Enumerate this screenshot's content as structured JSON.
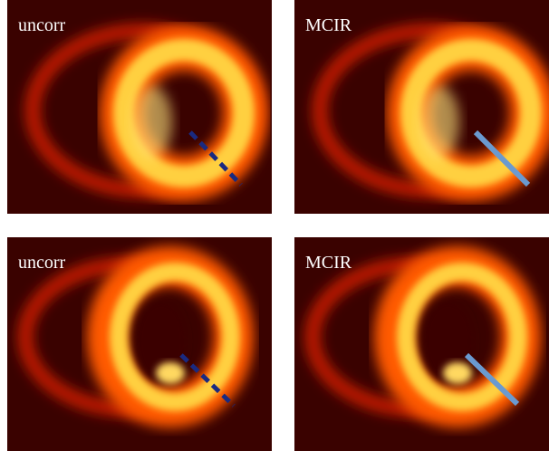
{
  "panels": [
    {
      "label": "uncorr"
    },
    {
      "label": "MCIR"
    },
    {
      "label": "uncorr"
    },
    {
      "label": "MCIR"
    }
  ]
}
